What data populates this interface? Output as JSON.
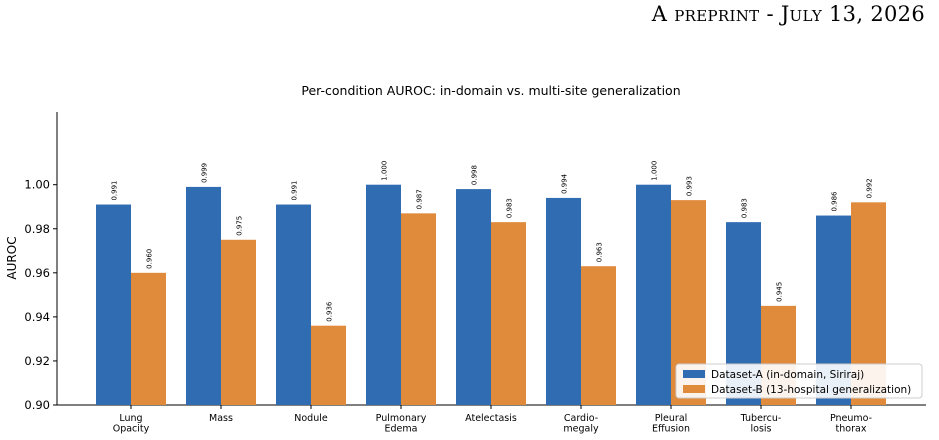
{
  "header": {
    "running_title": "A preprint - July 13, 2026"
  },
  "chart_data": {
    "type": "bar",
    "title": "Per-condition AUROC: in-domain vs. multi-site generalization",
    "xlabel": "",
    "ylabel": "AUROC",
    "ylim": [
      0.9,
      1.033
    ],
    "yticks": [
      "0.90",
      "0.92",
      "0.94",
      "0.96",
      "0.98",
      "1.00"
    ],
    "categories": [
      [
        "Lung",
        "Opacity"
      ],
      [
        "Mass"
      ],
      [
        "Nodule"
      ],
      [
        "Pulmonary",
        "Edema"
      ],
      [
        "Atelectasis"
      ],
      [
        "Cardio-",
        "megaly"
      ],
      [
        "Pleural",
        "Effusion"
      ],
      [
        "Tubercu-",
        "losis"
      ],
      [
        "Pneumo-",
        "thorax"
      ]
    ],
    "series": [
      {
        "name": "Dataset-A (in-domain, Siriraj)",
        "color": "#306cb1",
        "values": [
          0.991,
          0.999,
          0.991,
          1.0,
          0.998,
          0.994,
          1.0,
          0.983,
          0.986
        ],
        "labels": [
          "0.991",
          "0.999",
          "0.991",
          "1.000",
          "0.998",
          "0.994",
          "1.000",
          "0.983",
          "0.986"
        ]
      },
      {
        "name": "Dataset-B (13-hospital generalization)",
        "color": "#e08a3c",
        "values": [
          0.96,
          0.975,
          0.936,
          0.987,
          0.983,
          0.963,
          0.993,
          0.945,
          0.992
        ],
        "labels": [
          "0.960",
          "0.975",
          "0.936",
          "0.987",
          "0.983",
          "0.963",
          "0.993",
          "0.945",
          "0.992"
        ]
      }
    ],
    "grid": false,
    "legend": "bottom-right"
  }
}
